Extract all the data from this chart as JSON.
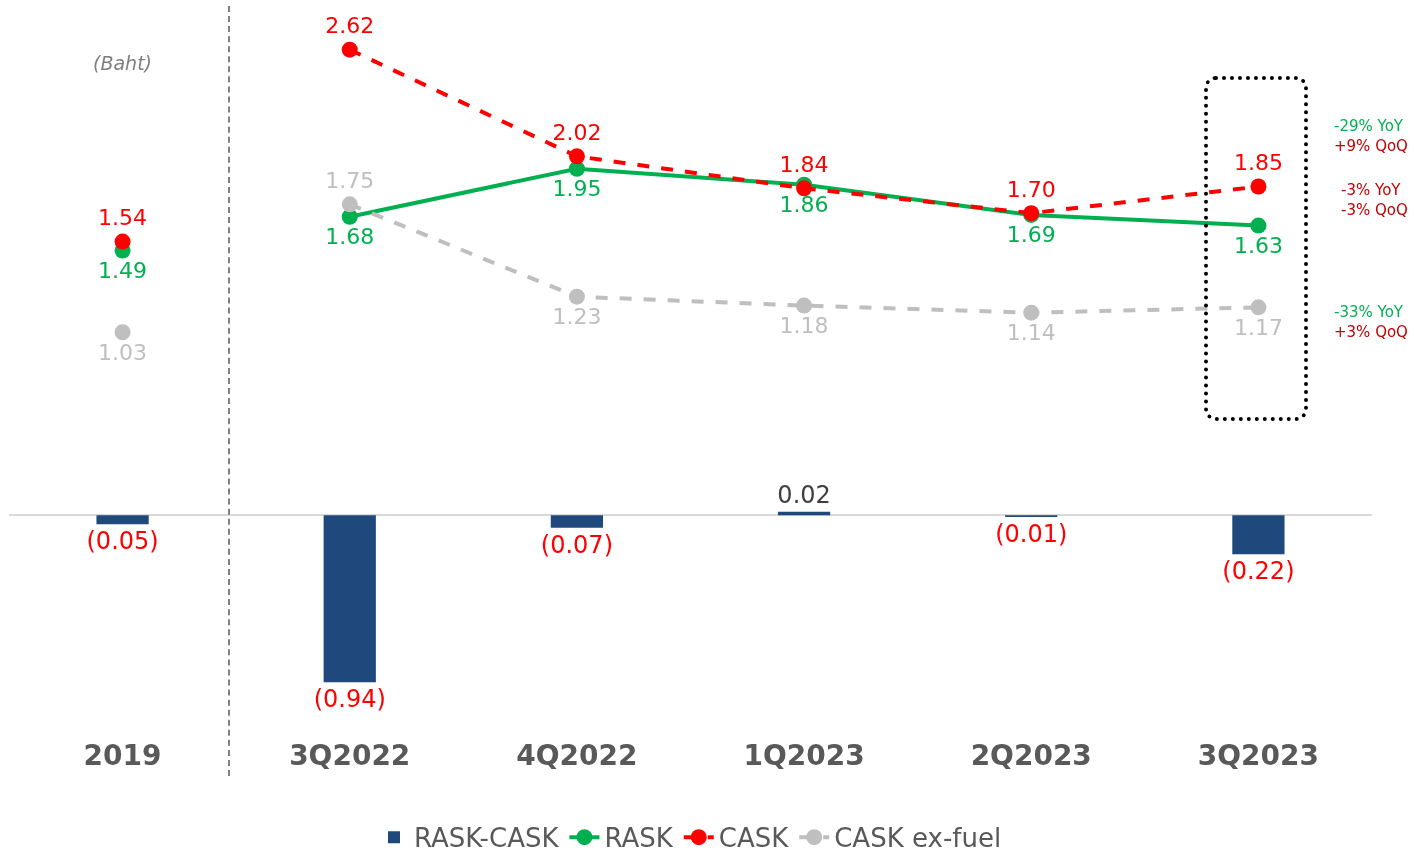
{
  "chart_data": {
    "type": "bar",
    "categories": [
      "2019",
      "3Q2022",
      "4Q2022",
      "1Q2023",
      "2Q2023",
      "3Q2023"
    ],
    "series": [
      {
        "name": "RASK-CASK",
        "color": "#1f497d",
        "values": [
          -0.05,
          -0.94,
          -0.07,
          0.02,
          -0.01,
          -0.22
        ],
        "value_labels": [
          "(0.05)",
          "(0.94)",
          "(0.07)",
          "0.02",
          "(0.01)",
          "(0.22)"
        ]
      },
      {
        "name": "RASK",
        "type": "line",
        "color": "#00b050",
        "line_style": "solid",
        "values": [
          null,
          1.68,
          1.95,
          1.86,
          1.69,
          1.63
        ],
        "value_labels": [
          null,
          "1.68",
          "1.95",
          "1.86",
          "1.69",
          "1.63"
        ]
      },
      {
        "name": "CASK",
        "type": "line",
        "color": "#ff0000",
        "line_style": "dashed",
        "values": [
          null,
          2.62,
          2.02,
          1.84,
          1.7,
          1.85
        ],
        "value_labels": [
          null,
          "2.62",
          "2.02",
          "1.84",
          "1.70",
          "1.85"
        ]
      },
      {
        "name": "CASK ex-fuel",
        "type": "line",
        "color": "#bfbfbf",
        "line_style": "dashed",
        "values": [
          null,
          1.75,
          1.23,
          1.18,
          1.14,
          1.17
        ],
        "value_labels": [
          null,
          "1.75",
          "1.23",
          "1.18",
          "1.14",
          "1.17"
        ]
      },
      {
        "type": "scatter",
        "color": "#00b050",
        "values": [
          1.49,
          null,
          null,
          null,
          null,
          null
        ],
        "value_labels": [
          "1.49",
          null,
          null,
          null,
          null,
          null
        ]
      },
      {
        "type": "scatter",
        "color": "#ff0000",
        "values": [
          1.54,
          null,
          null,
          null,
          null,
          null
        ],
        "value_labels": [
          "1.54",
          null,
          null,
          null,
          null,
          null
        ]
      },
      {
        "type": "scatter",
        "color": "#bfbfbf",
        "values": [
          1.03,
          null,
          null,
          null,
          null,
          null
        ],
        "value_labels": [
          "1.03",
          null,
          null,
          null,
          null,
          null
        ]
      }
    ],
    "tick_labels": "x",
    "marker": "circle",
    "grid": false,
    "legend": "bottom",
    "annotations": [
      "(Baht)",
      "-29% YoY\n+9% QoQ",
      "-3% YoY\n-3% QoQ",
      "-33% YoY\n+3% QoQ"
    ]
  }
}
